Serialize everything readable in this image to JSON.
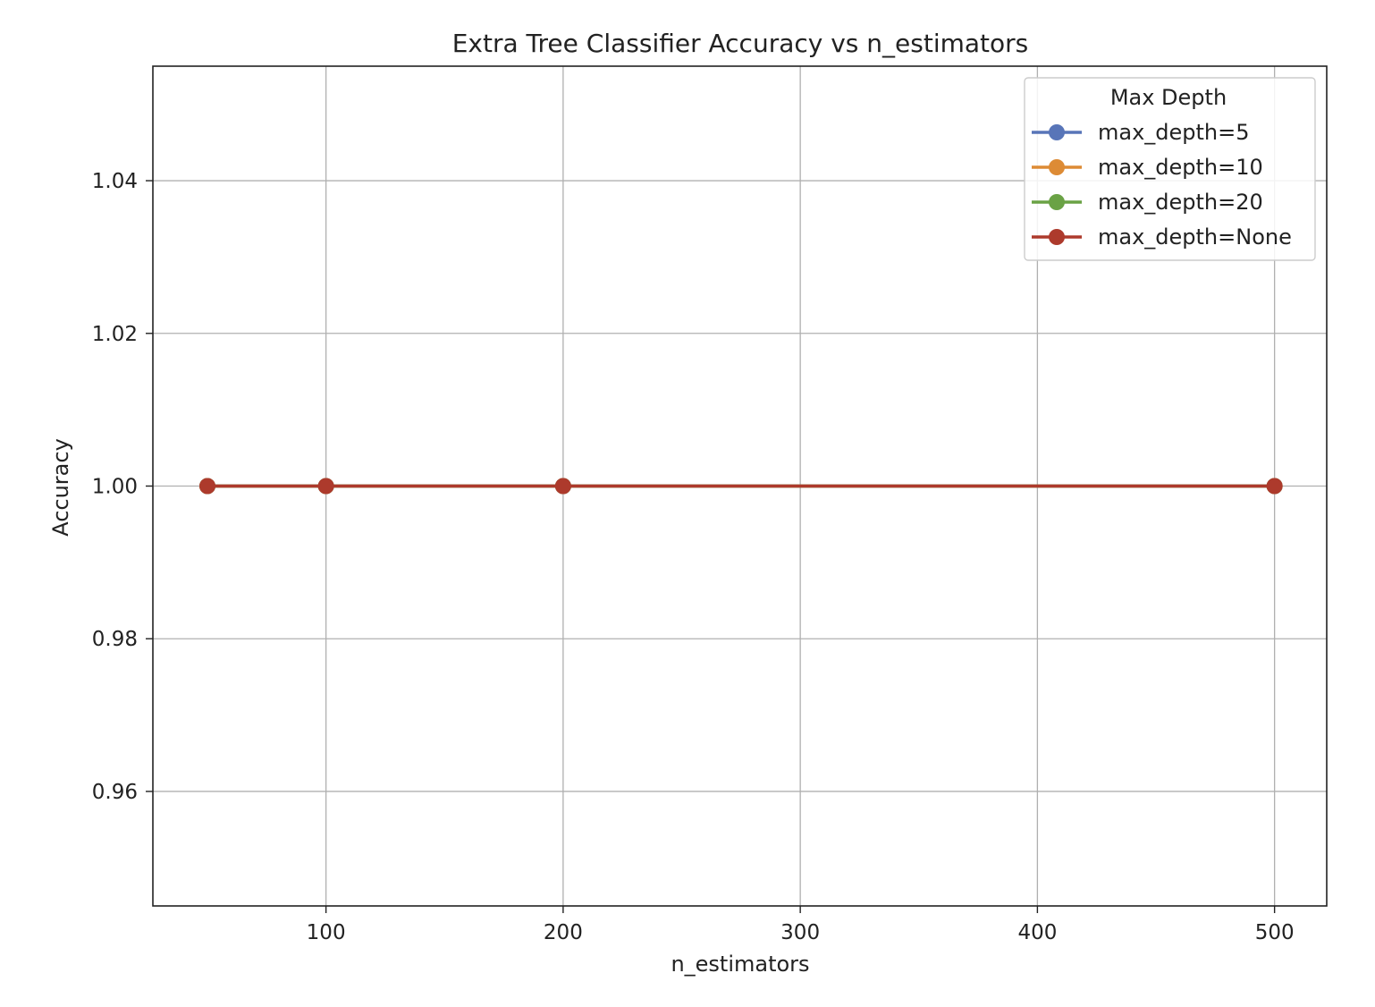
{
  "chart_data": {
    "type": "line",
    "title": "Extra Tree Classifier Accuracy vs n_estimators",
    "xlabel": "n_estimators",
    "ylabel": "Accuracy",
    "x": [
      50,
      100,
      200,
      500
    ],
    "xlim": [
      27,
      522
    ],
    "ylim": [
      0.945,
      1.055
    ],
    "xticks": [
      100,
      200,
      300,
      400,
      500
    ],
    "xtick_labels": [
      "100",
      "200",
      "300",
      "400",
      "500"
    ],
    "yticks": [
      0.96,
      0.98,
      1.0,
      1.02,
      1.04
    ],
    "ytick_labels": [
      "0.96",
      "0.98",
      "1.00",
      "1.02",
      "1.04"
    ],
    "grid": true,
    "legend": {
      "title": "Max Depth",
      "placement": "top-right"
    },
    "series": [
      {
        "name": "max_depth=5",
        "color": "#5875b8",
        "values": [
          1.0,
          1.0,
          1.0,
          1.0
        ]
      },
      {
        "name": "max_depth=10",
        "color": "#dd8b35",
        "values": [
          1.0,
          1.0,
          1.0,
          1.0
        ]
      },
      {
        "name": "max_depth=20",
        "color": "#6aa245",
        "values": [
          1.0,
          1.0,
          1.0,
          1.0
        ]
      },
      {
        "name": "max_depth=None",
        "color": "#ad3a2c",
        "values": [
          1.0,
          1.0,
          1.0,
          1.0
        ]
      }
    ]
  }
}
